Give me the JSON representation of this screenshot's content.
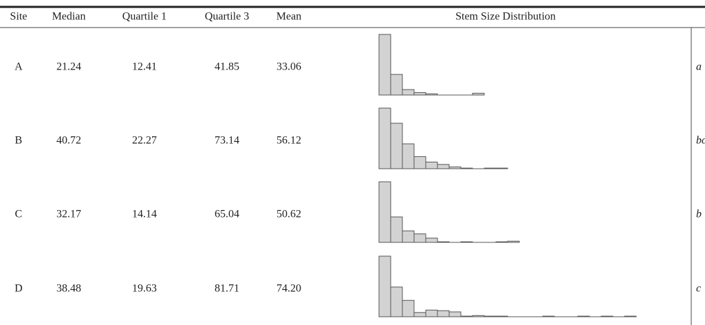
{
  "table": {
    "headers": [
      "Site",
      "Median",
      "Quartile 1",
      "Quartile 3",
      "Mean",
      "Stem Size Distribution"
    ],
    "rows": [
      {
        "cells": [
          "A",
          "21.24",
          "12.41",
          "41.85",
          "33.06"
        ],
        "group": "a",
        "histogram": [
          100,
          34,
          9,
          4,
          2,
          0,
          0,
          0,
          3
        ]
      },
      {
        "cells": [
          "B",
          "40.72",
          "22.27",
          "73.14",
          "56.12"
        ],
        "group": "bc",
        "histogram": [
          100,
          75,
          41,
          20,
          11,
          7,
          3,
          1,
          0,
          1,
          1
        ]
      },
      {
        "cells": [
          "C",
          "32.17",
          "14.14",
          "65.04",
          "50.62"
        ],
        "group": "b",
        "histogram": [
          100,
          42,
          19,
          14,
          7,
          1,
          0,
          1,
          0,
          0,
          1,
          2
        ]
      },
      {
        "cells": [
          "D",
          "38.48",
          "19.63",
          "81.71",
          "74.20"
        ],
        "group": "c",
        "histogram": [
          100,
          49,
          27,
          7,
          11,
          10,
          8,
          1,
          2,
          1,
          1,
          0,
          0,
          0,
          1,
          0,
          0,
          1,
          0,
          1,
          0,
          1
        ]
      }
    ]
  }
}
